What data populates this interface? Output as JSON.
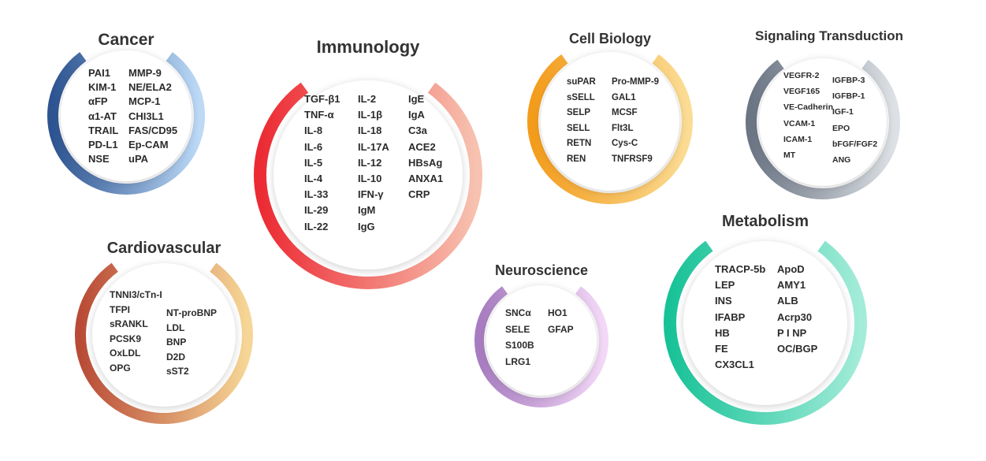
{
  "categories": {
    "cancer": {
      "title": "Cancer",
      "colors": [
        "#2d5491",
        "#bcd9f6"
      ],
      "col1": [
        "PAI1",
        "KIM-1",
        "αFP",
        "α1-AT",
        "TRAIL",
        "PD-L1",
        "NSE"
      ],
      "col2": [
        "MMP-9",
        "NE/ELA2",
        "MCP-1",
        "CHI3L1",
        "FAS/CD95",
        "Ep-CAM",
        "uPA"
      ]
    },
    "immunology": {
      "title": "Immunology",
      "colors": [
        "#ec2a33",
        "#f7c2b0"
      ],
      "col1": [
        "TGF-β1",
        "TNF-α",
        "IL-8",
        "IL-6",
        "IL-5",
        "IL-4",
        "IL-33",
        "IL-29",
        "IL-22"
      ],
      "col2": [
        "IL-2",
        "IL-1β",
        "IL-18",
        "IL-17A",
        "IL-12",
        "IL-10",
        "IFN-γ",
        "IgM",
        "IgG"
      ],
      "col3": [
        "IgE",
        "IgA",
        "C3a",
        "ACE2",
        "HBsAg",
        "ANXA1",
        "CRP"
      ]
    },
    "cell_biology": {
      "title": "Cell Biology",
      "colors": [
        "#f39c1c",
        "#fbdc94"
      ],
      "col1": [
        "suPAR",
        "sSELL",
        "SELP",
        "SELL",
        "RETN",
        "REN"
      ],
      "col2": [
        "Pro-MMP-9",
        "GAL1",
        "MCSF",
        "Flt3L",
        "Cys-C",
        "TNFRSF9"
      ]
    },
    "signaling": {
      "title": "Signaling Transduction",
      "colors": [
        "#6b7584",
        "#dde1e5"
      ],
      "col1": [
        "VEGFR-2",
        "VEGF165",
        "VE-Cadherin",
        "VCAM-1",
        "ICAM-1",
        "MT"
      ],
      "col2": [
        "IGFBP-3",
        "IGFBP-1",
        "IGF-1",
        "EPO",
        "bFGF/FGF2",
        "ANG"
      ]
    },
    "cardiovascular": {
      "title": "Cardiovascular",
      "colors": [
        "#b94b36",
        "#f6d696"
      ],
      "col1": [
        "TNNI3/cTn-I",
        "TFPI",
        "sRANKL",
        "PCSK9",
        "OxLDL",
        "OPG"
      ],
      "col2": [
        "NT-proBNP",
        "LDL",
        "BNP",
        "D2D",
        "sST2"
      ]
    },
    "neuroscience": {
      "title": "Neuroscience",
      "colors": [
        "#a77cc0",
        "#f3d8f7"
      ],
      "col1": [
        "SNCα",
        "SELE",
        "S100B",
        "LRG1"
      ],
      "col2": [
        "HO1",
        "GFAP"
      ]
    },
    "metabolism": {
      "title": "Metabolism",
      "colors": [
        "#18c297",
        "#a3ecd9"
      ],
      "col1": [
        "TRACP-5b",
        "LEP",
        "INS",
        "IFABP",
        "HB",
        "FE",
        "CX3CL1"
      ],
      "col2": [
        "ApoD",
        "AMY1",
        "ALB",
        "Acrp30",
        "P I NP",
        "OC/BGP"
      ]
    }
  }
}
